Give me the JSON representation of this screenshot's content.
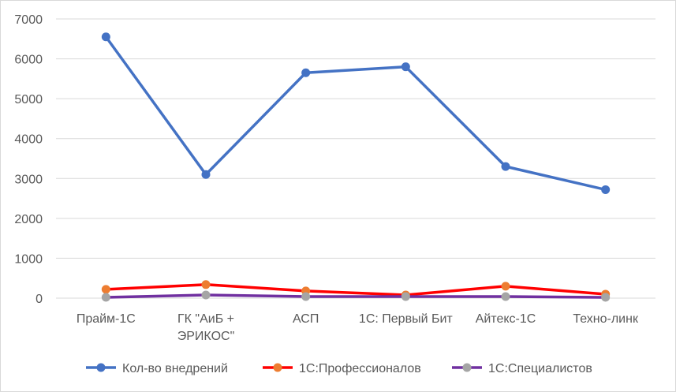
{
  "chart_data": {
    "type": "line",
    "title": "",
    "xlabel": "",
    "ylabel": "",
    "categories": [
      [
        "Прайм-1С"
      ],
      [
        "ГК \"АиБ +",
        "ЭРИКОС\""
      ],
      [
        "АСП"
      ],
      [
        "1С: Первый Бит"
      ],
      [
        "Айтекс-1С"
      ],
      [
        "Техно-линк"
      ]
    ],
    "ylim": [
      0,
      7000
    ],
    "yticks": [
      0,
      1000,
      2000,
      3000,
      4000,
      5000,
      6000,
      7000
    ],
    "grid": true,
    "legend_position": "bottom",
    "series": [
      {
        "name": "Кол-во внедрений",
        "line_color": "#4472c4",
        "marker_color": "#4472c4",
        "values": [
          6550,
          3100,
          5650,
          5800,
          3300,
          2720
        ]
      },
      {
        "name": "1С:Профессионалов",
        "line_color": "#ff0000",
        "marker_color": "#ed7d31",
        "values": [
          220,
          340,
          180,
          80,
          300,
          100
        ]
      },
      {
        "name": "1С:Специалистов",
        "line_color": "#7030a0",
        "marker_color": "#a5a5a5",
        "values": [
          20,
          80,
          40,
          40,
          40,
          20
        ]
      }
    ]
  }
}
